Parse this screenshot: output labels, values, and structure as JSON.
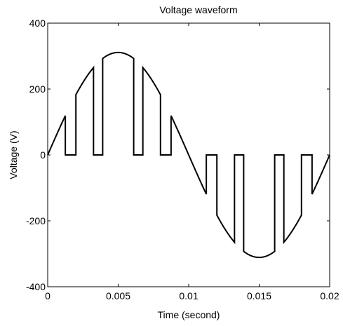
{
  "chart_data": {
    "type": "line",
    "title": "Voltage  waveform",
    "xlabel": "Time (second)",
    "ylabel": "Voltage (V)",
    "xlim": [
      0,
      0.02
    ],
    "ylim": [
      -400,
      400
    ],
    "xticks": [
      0,
      0.005,
      0.01,
      0.015,
      0.02
    ],
    "xtick_labels": [
      "0",
      "0.005",
      "0.01",
      "0.015",
      "0.02"
    ],
    "yticks": [
      -400,
      -200,
      0,
      200,
      400
    ],
    "ytick_labels": [
      "-400",
      "-200",
      "0",
      "200",
      "400"
    ],
    "grid": false,
    "legend": "none",
    "line_color": "#000000",
    "amplitude_v": 311,
    "frequency_hz": 50,
    "pulses_per_half_cycle": [
      [
        0,
        0.00125
      ],
      [
        0.002,
        0.00325
      ],
      [
        0.0039,
        0.0061
      ],
      [
        0.00675,
        0.008
      ],
      [
        0.00875,
        0.01
      ]
    ]
  }
}
